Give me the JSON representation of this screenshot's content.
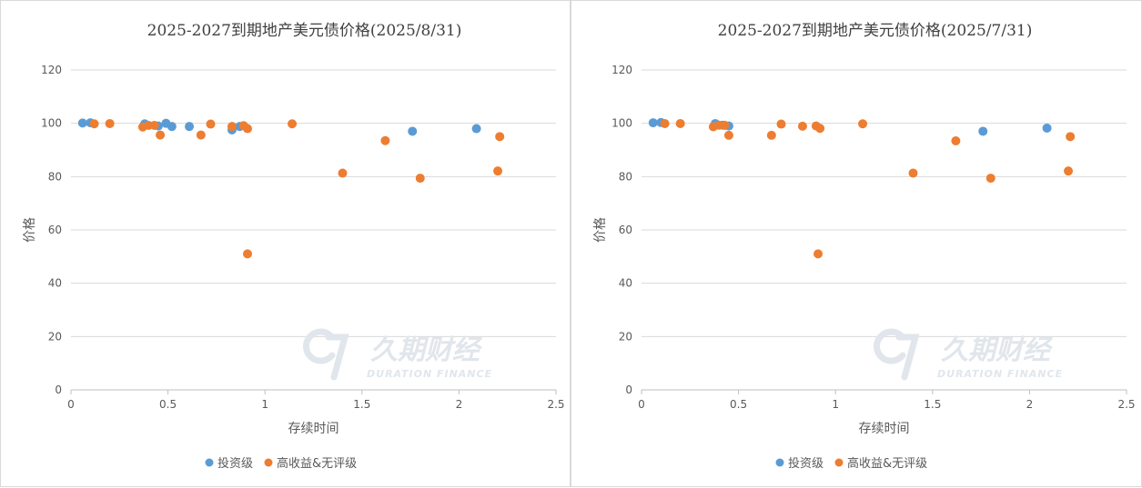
{
  "watermark": {
    "brand": "久期财经",
    "sub": "DURATION FINANCE"
  },
  "chart_data": [
    {
      "type": "scatter",
      "title": "2025-2027到期地产美元债价格(2025/8/31)",
      "xlabel": "存续时间",
      "ylabel": "价格",
      "xlim": [
        0,
        2.5
      ],
      "ylim": [
        0,
        120
      ],
      "xticks": [
        "0",
        "0.5",
        "1",
        "1.5",
        "2",
        "2.5"
      ],
      "yticks": [
        "0",
        "20",
        "40",
        "60",
        "80",
        "100",
        "120"
      ],
      "grid": true,
      "legend_position": "bottom",
      "series": [
        {
          "name": "投资级",
          "color": "#5b9bd5",
          "points": [
            [
              0.06,
              100.1
            ],
            [
              0.1,
              100.2
            ],
            [
              0.38,
              99.8
            ],
            [
              0.45,
              99.0
            ],
            [
              0.49,
              100.0
            ],
            [
              0.52,
              98.8
            ],
            [
              0.61,
              98.8
            ],
            [
              0.83,
              97.5
            ],
            [
              0.87,
              98.8
            ],
            [
              1.76,
              97.0
            ],
            [
              2.09,
              98.0
            ]
          ]
        },
        {
          "name": "高收益&无评级",
          "color": "#ed7d31",
          "points": [
            [
              0.12,
              99.8
            ],
            [
              0.2,
              99.9
            ],
            [
              0.37,
              98.6
            ],
            [
              0.4,
              99.2
            ],
            [
              0.43,
              99.2
            ],
            [
              0.46,
              95.6
            ],
            [
              0.67,
              95.6
            ],
            [
              0.72,
              99.7
            ],
            [
              0.83,
              98.8
            ],
            [
              0.89,
              99.1
            ],
            [
              0.91,
              98.0
            ],
            [
              0.91,
              51.0
            ],
            [
              1.14,
              99.8
            ],
            [
              1.4,
              81.3
            ],
            [
              1.62,
              93.5
            ],
            [
              1.8,
              79.4
            ],
            [
              2.2,
              82.1
            ],
            [
              2.21,
              95.0
            ]
          ]
        }
      ]
    },
    {
      "type": "scatter",
      "title": "2025-2027到期地产美元债价格(2025/7/31)",
      "xlabel": "存续时间",
      "ylabel": "价格",
      "xlim": [
        0,
        2.5
      ],
      "ylim": [
        0,
        120
      ],
      "xticks": [
        "0",
        "0.5",
        "1",
        "1.5",
        "2",
        "2.5"
      ],
      "yticks": [
        "0",
        "20",
        "40",
        "60",
        "80",
        "100",
        "120"
      ],
      "grid": true,
      "legend_position": "bottom",
      "series": [
        {
          "name": "投资级",
          "color": "#5b9bd5",
          "points": [
            [
              0.06,
              100.2
            ],
            [
              0.1,
              100.3
            ],
            [
              0.38,
              99.9
            ],
            [
              0.42,
              99.3
            ],
            [
              0.45,
              99.0
            ],
            [
              1.76,
              97.0
            ],
            [
              2.09,
              98.2
            ]
          ]
        },
        {
          "name": "高收益&无评级",
          "color": "#ed7d31",
          "points": [
            [
              0.12,
              99.9
            ],
            [
              0.2,
              99.9
            ],
            [
              0.37,
              98.7
            ],
            [
              0.4,
              99.3
            ],
            [
              0.43,
              99.2
            ],
            [
              0.45,
              95.5
            ],
            [
              0.67,
              95.5
            ],
            [
              0.72,
              99.7
            ],
            [
              0.83,
              98.9
            ],
            [
              0.9,
              99.0
            ],
            [
              0.92,
              98.1
            ],
            [
              0.91,
              51.0
            ],
            [
              1.14,
              99.8
            ],
            [
              1.4,
              81.3
            ],
            [
              1.62,
              93.4
            ],
            [
              1.8,
              79.4
            ],
            [
              2.2,
              82.1
            ],
            [
              2.21,
              95.0
            ]
          ]
        }
      ]
    }
  ]
}
